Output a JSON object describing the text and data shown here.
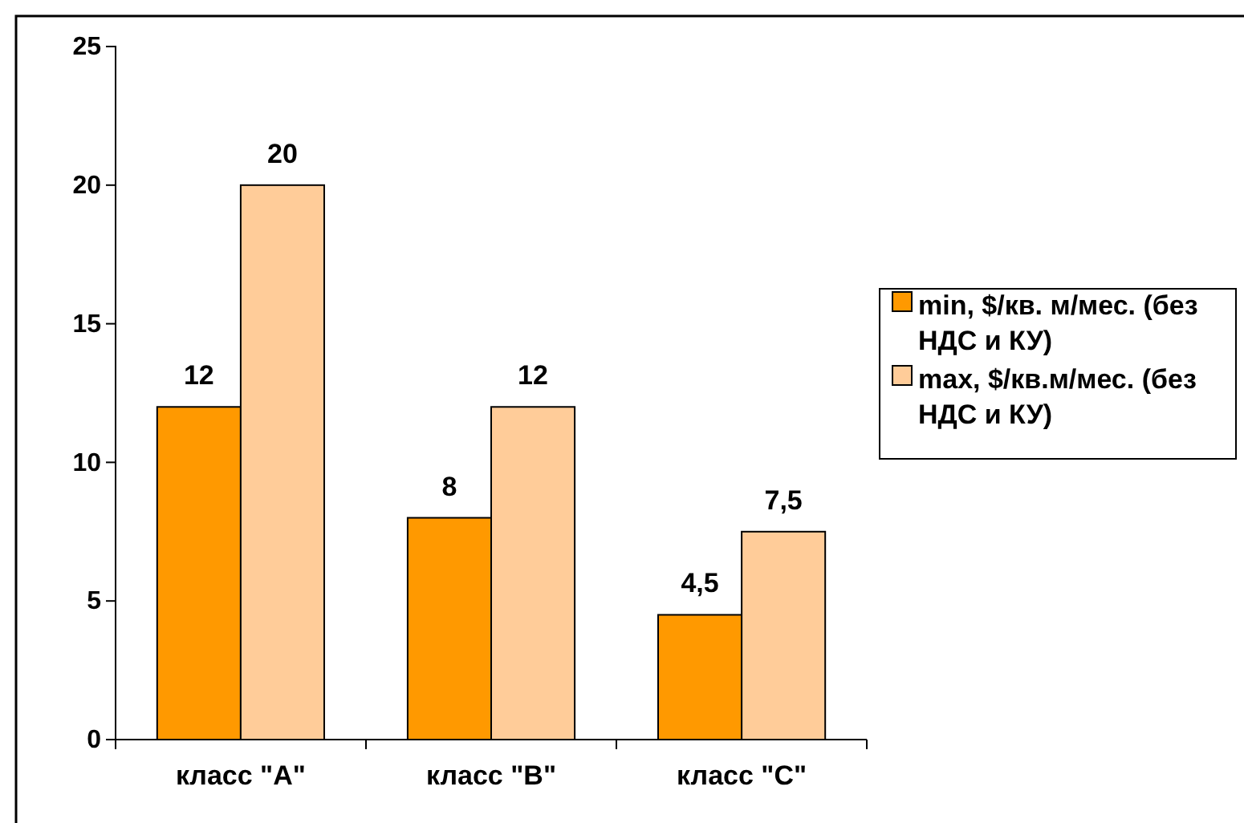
{
  "chart_data": {
    "type": "bar",
    "categories": [
      "класс \"A\"",
      "класс \"B\"",
      "класс \"C\""
    ],
    "series": [
      {
        "name": "min, $/кв. м/мес. (без НДС и КУ)",
        "color": "#ff9900",
        "values": [
          12,
          8,
          4.5
        ],
        "value_labels": [
          "12",
          "8",
          "4,5"
        ]
      },
      {
        "name": "max, $/кв.м/мес. (без НДС и КУ)",
        "color": "#ffcc99",
        "values": [
          20,
          12,
          7.5
        ],
        "value_labels": [
          "20",
          "12",
          "7,5"
        ]
      }
    ],
    "ylim": [
      0,
      25
    ],
    "yticks": [
      0,
      5,
      10,
      15,
      20,
      25
    ],
    "grid": false,
    "legend": "right"
  }
}
